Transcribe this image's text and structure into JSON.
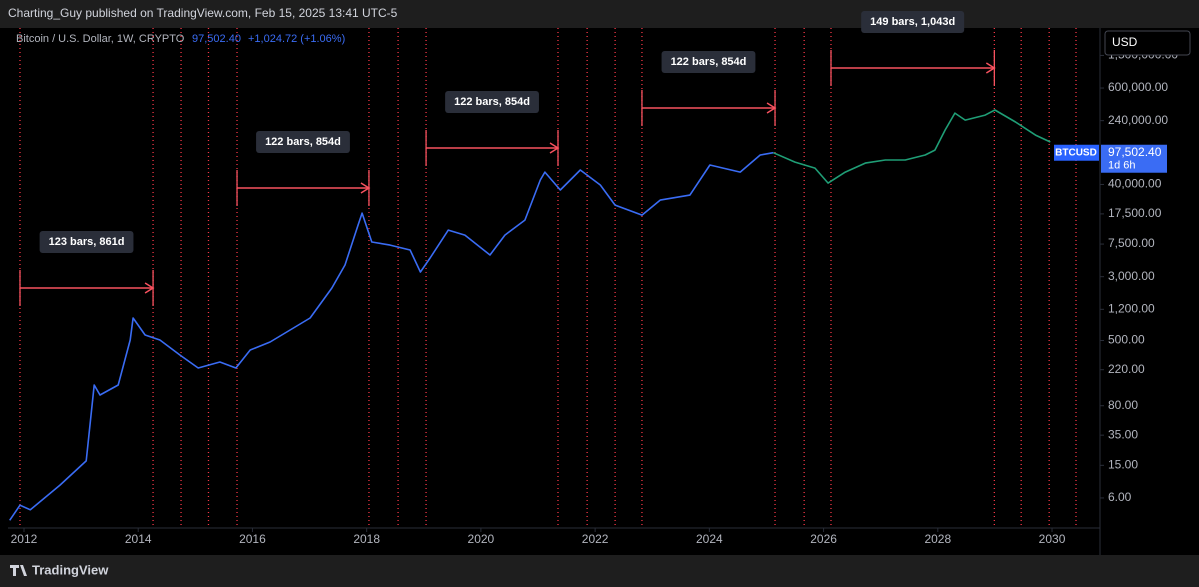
{
  "header": {
    "publisher": "Charting_Guy published on TradingView.com, Feb 15, 2025 13:41 UTC-5"
  },
  "footer": {
    "brand": "TradingView"
  },
  "chart_data": {
    "type": "line",
    "symbol_title": "Bitcoin / U.S. Dollar, 1W, CRYPTO",
    "last_price": "97,502.40",
    "change": "+1,024.72 (+1.06%)",
    "currency": "USD",
    "log_scale": true,
    "xlim": [
      2011.72,
      2030.84
    ],
    "ylim": [
      2.58,
      3240000
    ],
    "xticks": [
      2012,
      2014,
      2016,
      2018,
      2020,
      2022,
      2024,
      2026,
      2028,
      2030
    ],
    "yticks": [
      {
        "value": 1500000,
        "label": "1,500,000.00"
      },
      {
        "value": 600000,
        "label": "600,000.00"
      },
      {
        "value": 240000,
        "label": "240,000.00"
      },
      {
        "value": 40000,
        "label": "40,000.00"
      },
      {
        "value": 17500,
        "label": "17,500.00"
      },
      {
        "value": 7500,
        "label": "7,500.00"
      },
      {
        "value": 3000,
        "label": "3,000.00"
      },
      {
        "value": 1200,
        "label": "1,200.00"
      },
      {
        "value": 500,
        "label": "500.00"
      },
      {
        "value": 220,
        "label": "220.00"
      },
      {
        "value": 80,
        "label": "80.00"
      },
      {
        "value": 35,
        "label": "35.00"
      },
      {
        "value": 15,
        "label": "15.00"
      },
      {
        "value": 6,
        "label": "6.00"
      }
    ],
    "price_label": {
      "value": 97502.4,
      "label": "97,502.40",
      "countdown": "1d 6h"
    },
    "series": [
      {
        "name": "BTCUSD",
        "color": "#3a6cf4",
        "x": [
          2011.75,
          2011.93,
          2012.11,
          2012.63,
          2013.09,
          2013.23,
          2013.33,
          2013.65,
          2013.86,
          2013.91,
          2014.12,
          2014.38,
          2014.73,
          2015.05,
          2015.43,
          2015.71,
          2015.96,
          2016.31,
          2016.66,
          2017.01,
          2017.39,
          2017.62,
          2017.85,
          2017.92,
          2018.09,
          2018.41,
          2018.76,
          2018.94,
          2019.11,
          2019.43,
          2019.72,
          2020.16,
          2020.42,
          2020.77,
          2021.04,
          2021.12,
          2021.39,
          2021.74,
          2022.09,
          2022.35,
          2022.82,
          2023.14,
          2023.66,
          2024.01,
          2024.54,
          2024.89,
          2025.12
        ],
        "values": [
          3.2,
          4.9,
          4.3,
          8.6,
          17,
          143,
          108,
          143,
          507,
          940,
          583,
          507,
          333,
          231,
          273,
          231,
          383,
          479,
          671,
          940,
          2180,
          4160,
          12800,
          17900,
          7940,
          7290,
          6340,
          3420,
          5070,
          11100,
          9660,
          5510,
          9660,
          14700,
          45300,
          56600,
          34200,
          60000,
          39400,
          22400,
          16900,
          25800,
          29700,
          69000,
          56600,
          91400,
          97500
        ]
      },
      {
        "color": "#1f9e76",
        "x": [
          2025.12,
          2025.5,
          2025.85,
          2026.08,
          2026.38,
          2026.73,
          2027.08,
          2027.43,
          2027.78,
          2027.95,
          2028.13,
          2028.3,
          2028.48,
          2028.83,
          2029.0,
          2029.36,
          2029.71,
          2029.97
        ],
        "values": [
          97500,
          75000,
          63400,
          41600,
          56600,
          72900,
          79400,
          79400,
          91400,
          105000,
          185000,
          297000,
          244000,
          281000,
          324000,
          231000,
          160000,
          132000
        ]
      }
    ],
    "markers_x": [
      2011.93,
      2014.26,
      2014.75,
      2015.23,
      2015.73,
      2018.04,
      2018.55,
      2019.04,
      2021.35,
      2021.86,
      2022.35,
      2022.82,
      2025.15,
      2025.66,
      2026.13,
      2028.99,
      2029.46,
      2029.95,
      2030.42
    ],
    "marker_color": "#f23645",
    "annotation_color": "#f7525f",
    "annotations": [
      {
        "label": "123 bars, 861d",
        "x": [
          2011.93,
          2014.26
        ]
      },
      {
        "label": "122 bars, 854d",
        "x": [
          2015.73,
          2018.04
        ]
      },
      {
        "label": "122 bars, 854d",
        "x": [
          2019.04,
          2021.35
        ]
      },
      {
        "label": "122 bars, 854d",
        "x": [
          2022.82,
          2025.15
        ]
      },
      {
        "label": "149 bars, 1,043d",
        "x": [
          2026.13,
          2028.99
        ]
      }
    ]
  }
}
